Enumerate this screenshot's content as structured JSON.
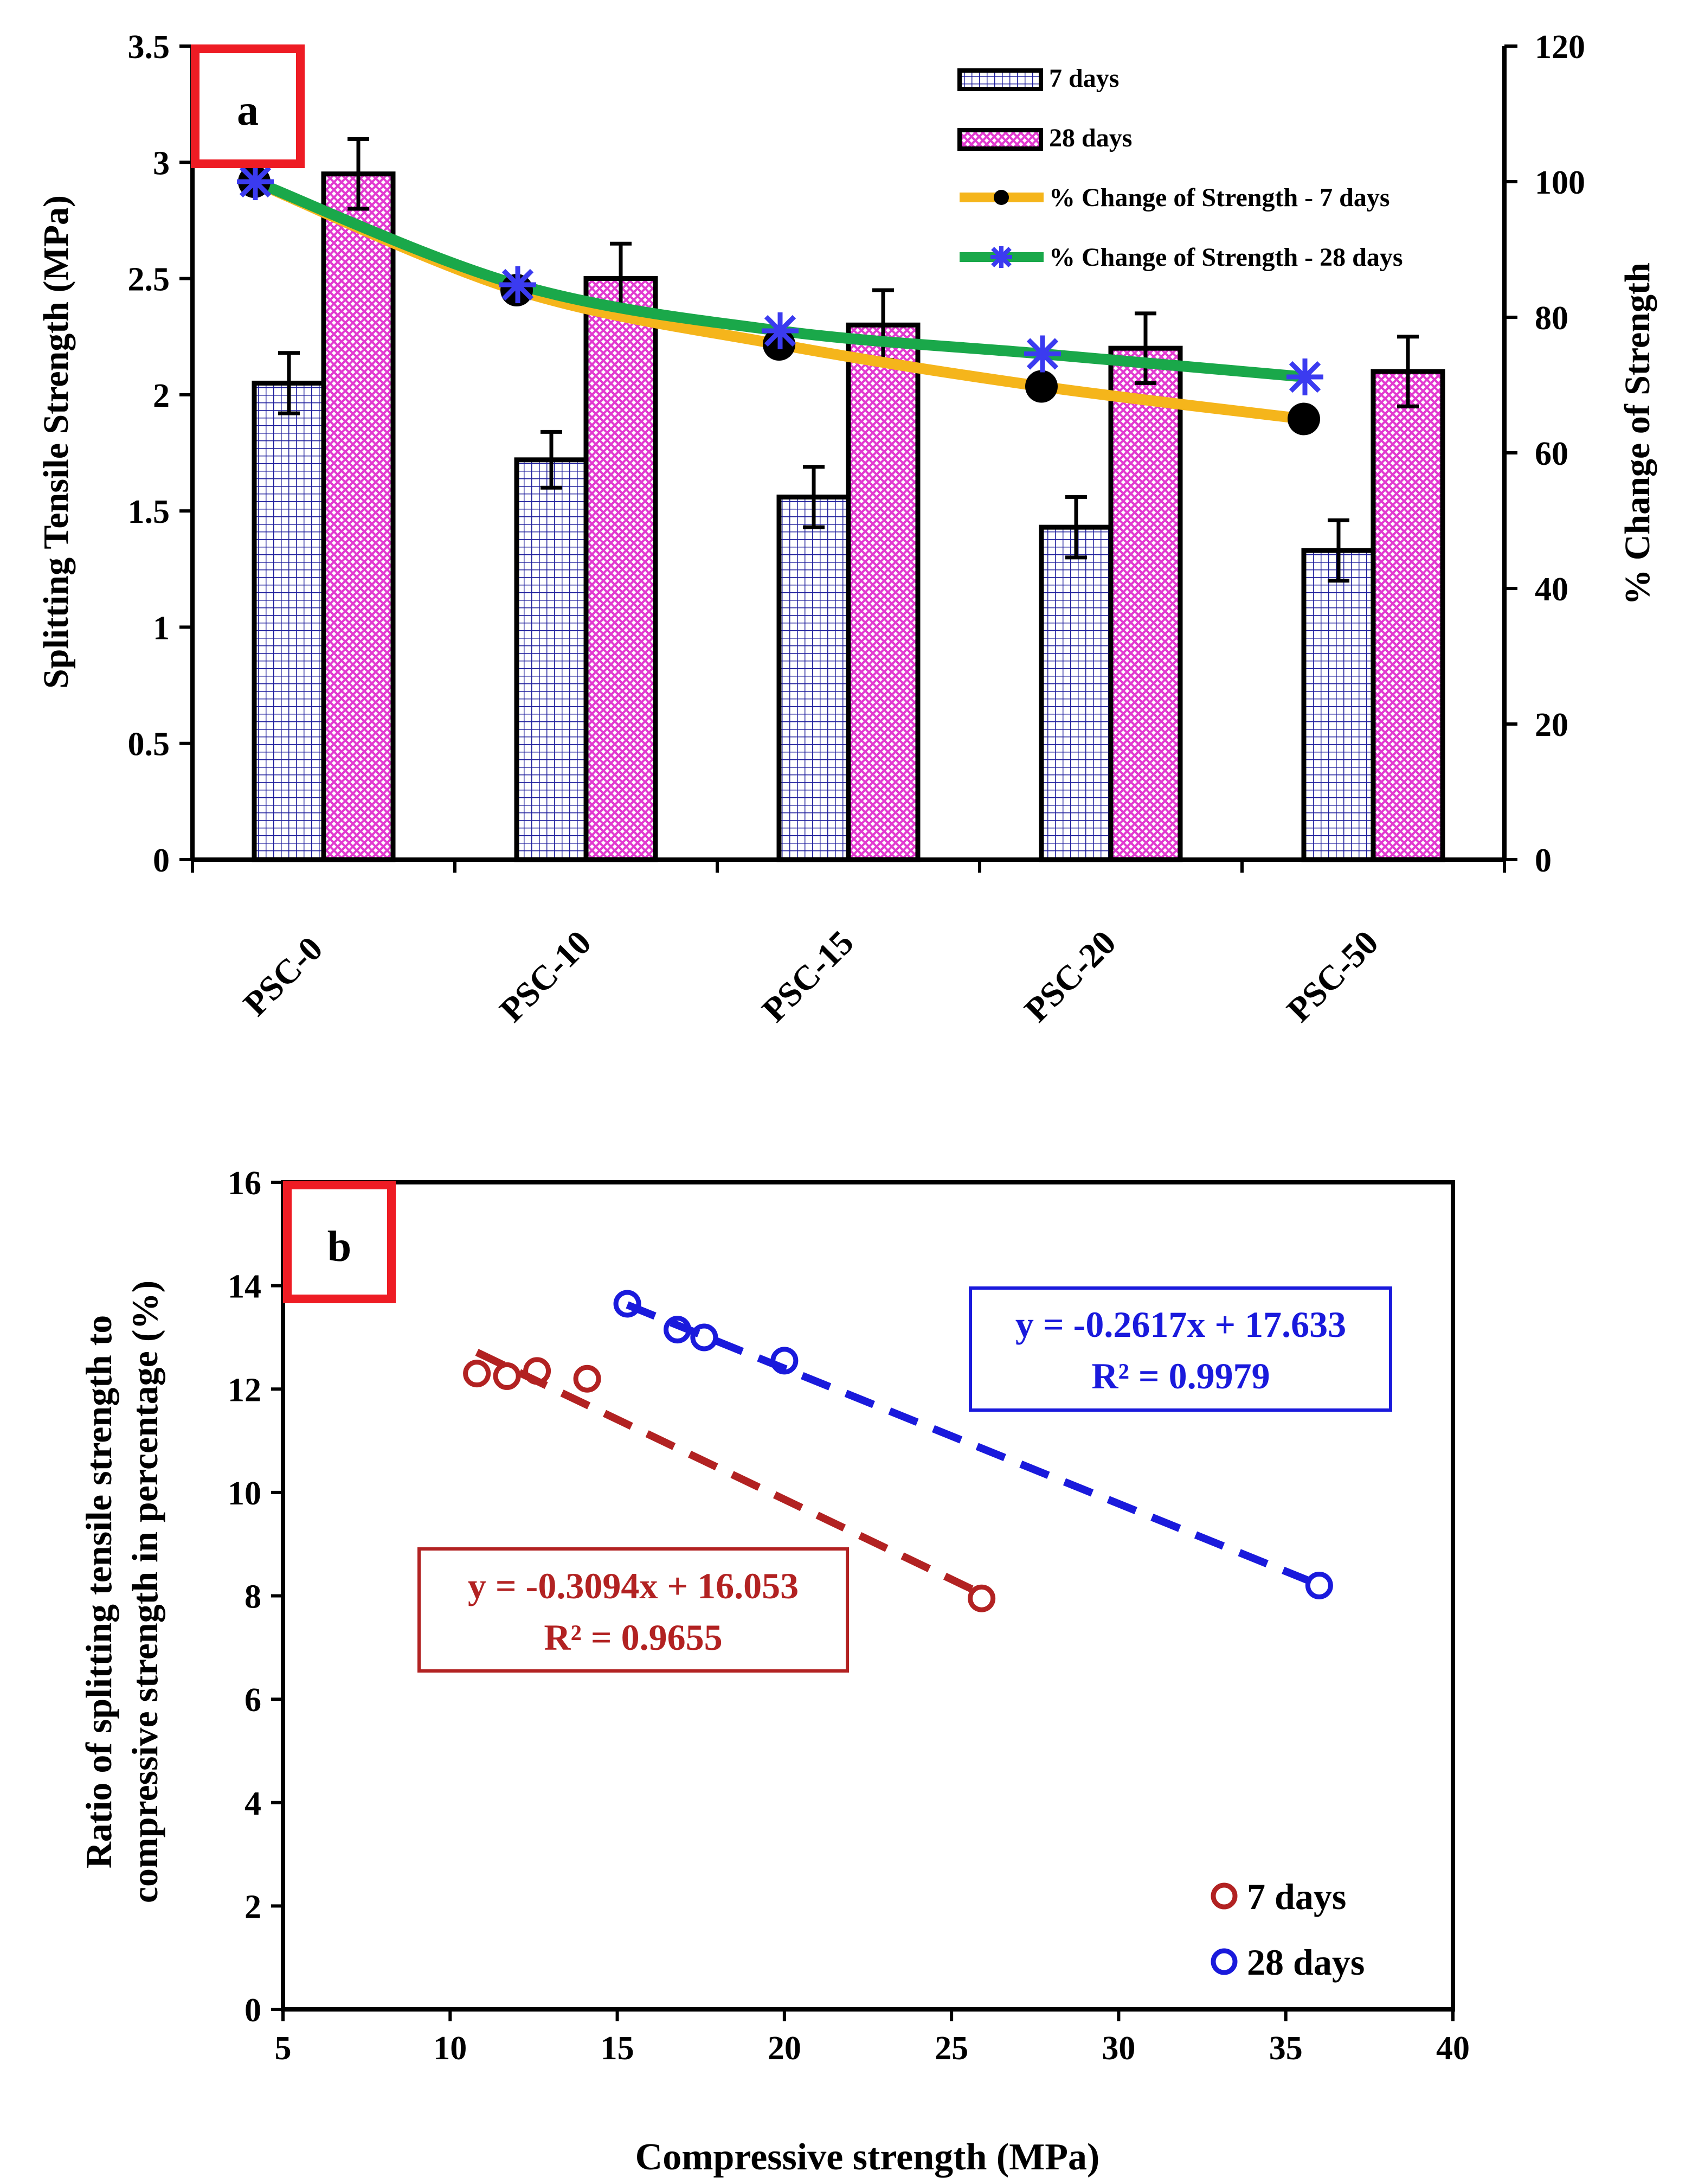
{
  "chart_data": [
    {
      "panel_label": "a",
      "type": "bar",
      "title": "",
      "xlabel": "",
      "ylabel": "Splitting Tensile Strength (MPa)",
      "y2label": "% Change of Strength",
      "categories": [
        "PSC-0",
        "PSC-10",
        "PSC-15",
        "PSC-20",
        "PSC-50"
      ],
      "ylim": [
        0,
        3.5
      ],
      "y2lim": [
        0,
        120
      ],
      "yticks": [
        "0",
        "0.5",
        "1",
        "1.5",
        "2",
        "2.5",
        "3",
        "3.5"
      ],
      "y2ticks": [
        "0",
        "20",
        "40",
        "60",
        "80",
        "100",
        "120"
      ],
      "series": [
        {
          "name": "7 days",
          "kind": "bar",
          "values": [
            2.05,
            1.72,
            1.56,
            1.43,
            1.33
          ],
          "errors": [
            0.13,
            0.12,
            0.13,
            0.13,
            0.13
          ],
          "color": "#1f1f9c"
        },
        {
          "name": "28 days",
          "kind": "bar",
          "values": [
            2.95,
            2.5,
            2.3,
            2.2,
            2.1
          ],
          "errors": [
            0.15,
            0.15,
            0.15,
            0.15,
            0.15
          ],
          "color": "#e23ad0"
        },
        {
          "name": "% Change of Strength - 7 days",
          "kind": "line",
          "axis": "y2",
          "values": [
            100,
            84,
            76,
            69.8,
            65
          ],
          "color": "#f5b51b",
          "marker_color": "#000000"
        },
        {
          "name": "% Change of Strength - 28 days",
          "kind": "line",
          "axis": "y2",
          "values": [
            100,
            84.8,
            78,
            74.6,
            71.2
          ],
          "color": "#1aa84a",
          "marker_color": "#3b3bf0"
        }
      ],
      "legend": "top-right"
    },
    {
      "panel_label": "b",
      "type": "scatter",
      "title": "",
      "xlabel": "Compressive strength (MPa)",
      "ylabel_lines": [
        "Ratio of splitting tensile strength to",
        "compressive strength in percentage (%)"
      ],
      "xlim": [
        5,
        40
      ],
      "ylim": [
        0,
        16
      ],
      "xticks": [
        "5",
        "10",
        "15",
        "20",
        "25",
        "30",
        "35",
        "40"
      ],
      "yticks": [
        "0",
        "2",
        "4",
        "6",
        "8",
        "10",
        "12",
        "14",
        "16"
      ],
      "series": [
        {
          "name": "7 days",
          "color": "#b22222",
          "points": [
            [
              10.8,
              12.3
            ],
            [
              11.7,
              12.25
            ],
            [
              12.6,
              12.35
            ],
            [
              14.1,
              12.2
            ],
            [
              25.9,
              7.95
            ]
          ],
          "trend": {
            "slope": -0.3094,
            "intercept": 16.053,
            "x_range": [
              10.8,
              25.9
            ]
          },
          "equation_lines": [
            "y = -0.3094x + 16.053",
            "R² = 0.9655"
          ]
        },
        {
          "name": "28 days",
          "color": "#1a1adc",
          "points": [
            [
              15.3,
              13.65
            ],
            [
              16.8,
              13.15
            ],
            [
              17.6,
              13.0
            ],
            [
              20.0,
              12.55
            ],
            [
              36.0,
              8.2
            ]
          ],
          "trend": {
            "slope": -0.2617,
            "intercept": 17.633,
            "x_range": [
              15.3,
              36.0
            ]
          },
          "equation_lines": [
            "y = -0.2617x + 17.633",
            "R² = 0.9979"
          ]
        }
      ],
      "legend": "bottom-right"
    }
  ]
}
